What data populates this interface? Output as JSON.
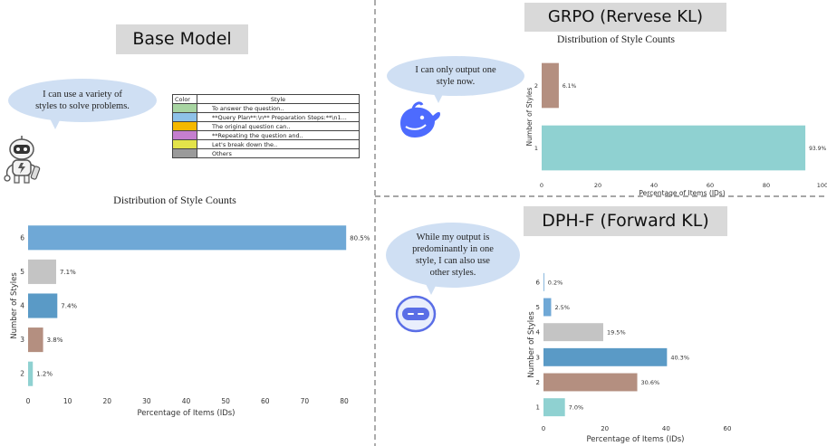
{
  "panels": {
    "base": {
      "label": "Base Model",
      "bubble_text": "I can use a variety of styles to solve problems.",
      "chart_title": "Distribution of Style Counts"
    },
    "grpo": {
      "label": "GRPO (Rervese KL)",
      "bubble_text": "I can only output one style now.",
      "chart_title": "Distribution of Style Counts"
    },
    "dph": {
      "label": "DPH-F (Forward KL)",
      "bubble_text": "While my output is predominantly in one style, I can also use other styles."
    }
  },
  "legend": {
    "header_color": "Color",
    "header_style": "Style",
    "rows": [
      {
        "color": "#a8d5a2",
        "style": "To answer the question.."
      },
      {
        "color": "#8ec1e8",
        "style": "**Query Plan**:\\n** Preparation Steps:**\\n1..."
      },
      {
        "color": "#f5b800",
        "style": "The original question can.."
      },
      {
        "color": "#c57fcf",
        "style": "**Repeating the question and.."
      },
      {
        "color": "#e3e34a",
        "style": "Let's break down the.."
      },
      {
        "color": "#9a9a9a",
        "style": "Others"
      }
    ]
  },
  "chart_data": [
    {
      "id": "base",
      "type": "bar",
      "orientation": "horizontal",
      "title": "Distribution of Style Counts",
      "xlabel": "Percentage of Items (IDs)",
      "ylabel": "Number of Styles",
      "xlim": [
        0,
        80
      ],
      "xticks": [
        0,
        10,
        20,
        30,
        40,
        50,
        60,
        70,
        80
      ],
      "categories": [
        "6",
        "5",
        "4",
        "3",
        "2"
      ],
      "values": [
        80.5,
        7.1,
        7.4,
        3.8,
        1.2
      ],
      "labels": [
        "80.5%",
        "7.1%",
        "7.4%",
        "3.8%",
        "1.2%"
      ],
      "colors": [
        "#6fa8d6",
        "#c4c4c4",
        "#5a9ac6",
        "#b48f80",
        "#8fd1d1"
      ]
    },
    {
      "id": "grpo",
      "type": "bar",
      "orientation": "horizontal",
      "title": "Distribution of Style Counts",
      "xlabel": "Percentage of Items (IDs)",
      "ylabel": "Number of Styles",
      "xlim": [
        0,
        100
      ],
      "xticks": [
        0,
        20,
        40,
        60,
        80,
        100
      ],
      "categories": [
        "2",
        "1"
      ],
      "values": [
        6.1,
        93.9
      ],
      "labels": [
        "6.1%",
        "93.9%"
      ],
      "colors": [
        "#b48f80",
        "#8fd1d1"
      ]
    },
    {
      "id": "dph",
      "type": "bar",
      "orientation": "horizontal",
      "title": "",
      "xlabel": "Percentage of Items (IDs)",
      "ylabel": "Number of Styles",
      "xlim": [
        0,
        60
      ],
      "xticks": [
        0,
        20,
        40,
        60
      ],
      "categories": [
        "6",
        "5",
        "4",
        "3",
        "2",
        "1"
      ],
      "values": [
        0.2,
        2.5,
        19.5,
        40.3,
        30.6,
        7.0
      ],
      "labels": [
        "0.2%",
        "2.5%",
        "19.5%",
        "40.3%",
        "30.6%",
        "7.0%"
      ],
      "colors": [
        "#6fa8d6",
        "#6fa8d6",
        "#c4c4c4",
        "#5a9ac6",
        "#b48f80",
        "#8fd1d1"
      ]
    }
  ]
}
